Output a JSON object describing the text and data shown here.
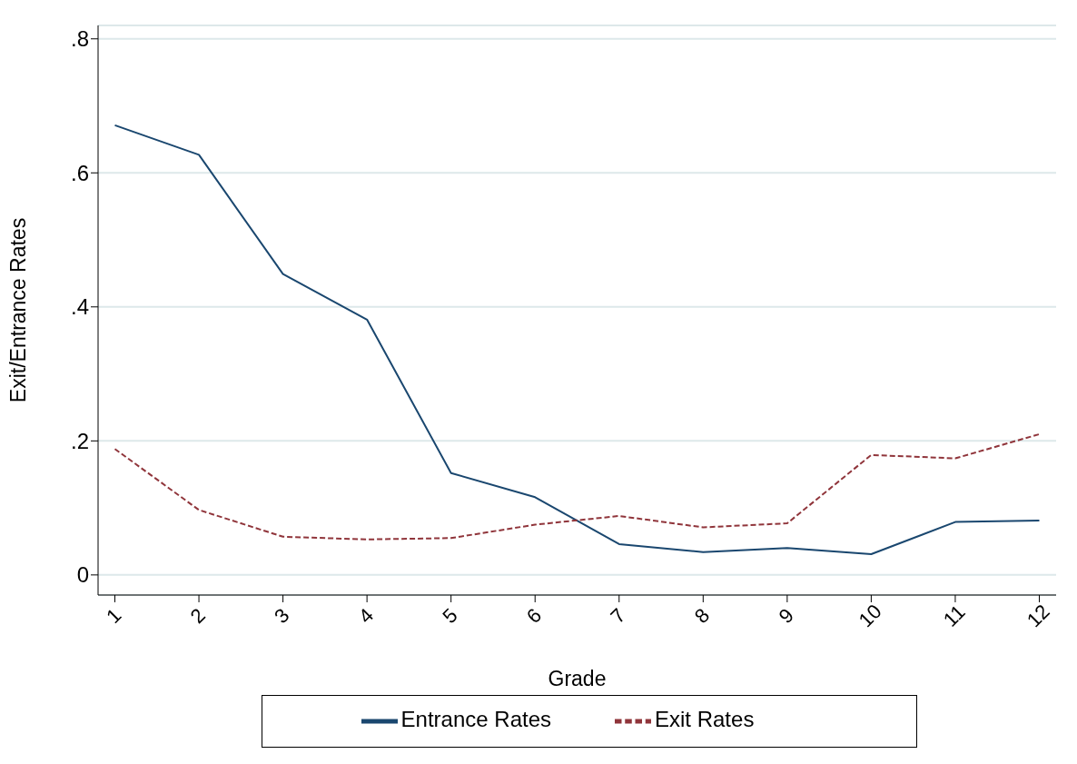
{
  "chart_data": {
    "type": "line",
    "xlabel": "Grade",
    "ylabel": "Exit/Entrance Rates",
    "x": [
      1,
      2,
      3,
      4,
      5,
      6,
      7,
      8,
      9,
      10,
      11,
      12
    ],
    "series": [
      {
        "name": "Entrance Rates",
        "color": "#1a476f",
        "line_style": "solid",
        "values": [
          0.671,
          0.627,
          0.449,
          0.381,
          0.152,
          0.116,
          0.046,
          0.034,
          0.04,
          0.031,
          0.079,
          0.081
        ]
      },
      {
        "name": "Exit Rates",
        "color": "#90353b",
        "line_style": "dashed",
        "values": [
          0.188,
          0.097,
          0.057,
          0.053,
          0.055,
          0.075,
          0.088,
          0.071,
          0.077,
          0.179,
          0.174,
          0.21
        ]
      }
    ],
    "xlim": [
      0.8,
      12.2
    ],
    "xticks": [
      1,
      2,
      3,
      4,
      5,
      6,
      7,
      8,
      9,
      10,
      11,
      12
    ],
    "ylim": [
      -0.03,
      0.82
    ],
    "yticks": [
      0,
      {
        "value": 0.2,
        "label": ".2"
      },
      {
        "value": 0.4,
        "label": ".4"
      },
      {
        "value": 0.6,
        "label": ".6"
      },
      {
        "value": 0.8,
        "label": ".8"
      }
    ],
    "grid": "y",
    "legend": "bottom",
    "marker": "none"
  }
}
